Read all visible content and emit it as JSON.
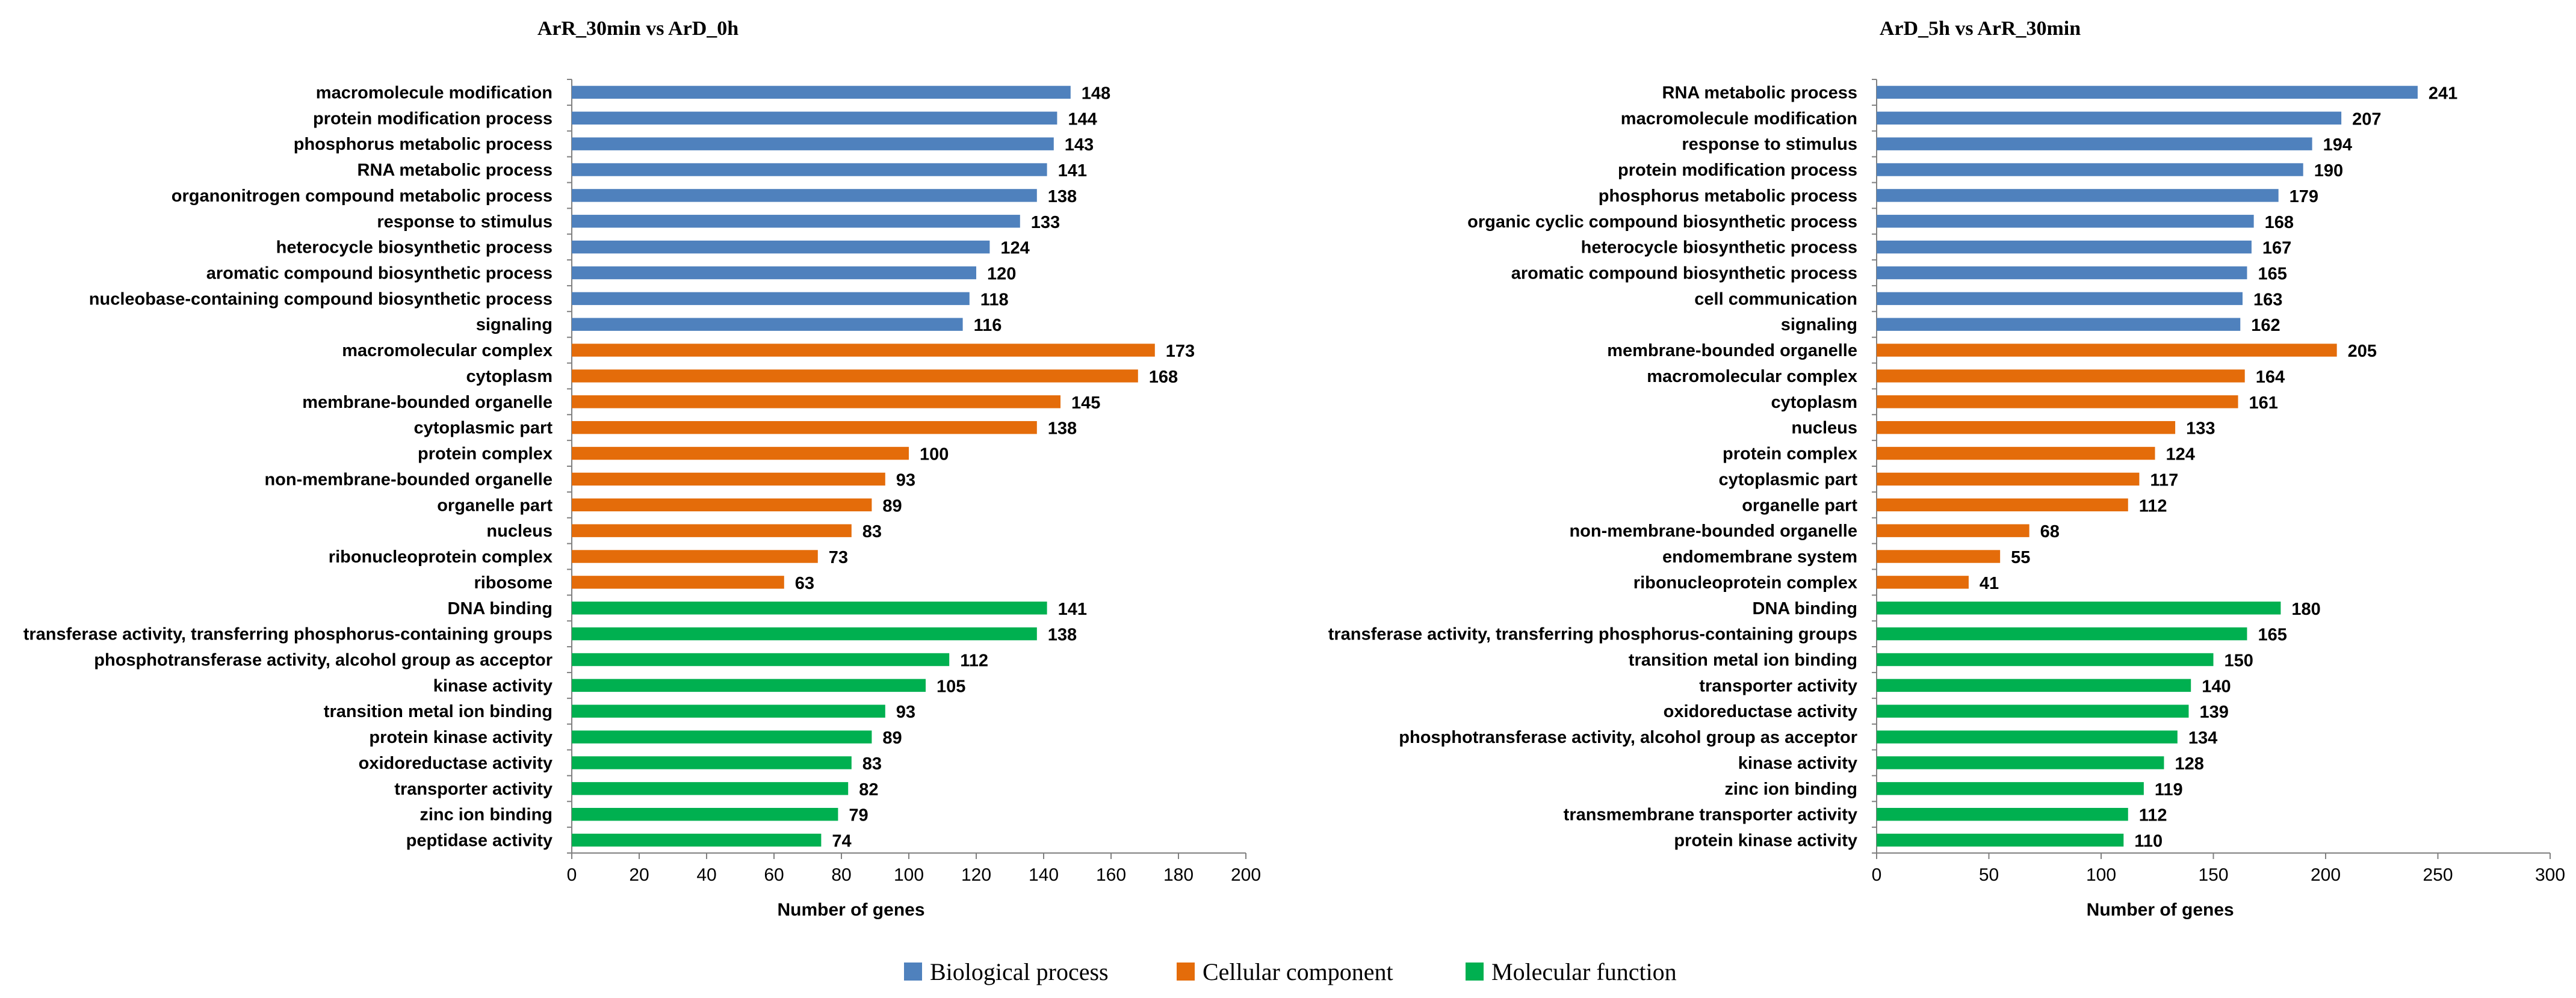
{
  "colors": {
    "biological_process": "#4F81BD",
    "cellular_component": "#E46C0A",
    "molecular_function": "#00B050"
  },
  "legend": [
    {
      "label": "Biological process",
      "key": "biological_process"
    },
    {
      "label": "Cellular component",
      "key": "cellular_component"
    },
    {
      "label": "Molecular function",
      "key": "molecular_function"
    }
  ],
  "chart_data": [
    {
      "type": "bar",
      "orientation": "horizontal",
      "title": "ArR_30min vs ArD_0h",
      "xlabel": "Number of genes",
      "ylabel": "",
      "xlim": [
        0,
        200
      ],
      "xticks": [
        0,
        20,
        40,
        60,
        80,
        100,
        120,
        140,
        160,
        180,
        200
      ],
      "categories": [
        "macromolecule modification",
        "protein modification process",
        "phosphorus metabolic process",
        "RNA metabolic process",
        "organonitrogen compound metabolic process",
        "response to stimulus",
        "heterocycle biosynthetic process",
        "aromatic compound biosynthetic process",
        "nucleobase-containing compound biosynthetic process",
        "signaling",
        "macromolecular complex",
        "cytoplasm",
        "membrane-bounded organelle",
        "cytoplasmic part",
        "protein complex",
        "non-membrane-bounded organelle",
        "organelle part",
        "nucleus",
        "ribonucleoprotein complex",
        "ribosome",
        "DNA binding",
        "transferase activity, transferring phosphorus-containing groups",
        "phosphotransferase activity, alcohol group as acceptor",
        "kinase activity",
        "transition metal ion binding",
        "protein kinase activity",
        "oxidoreductase activity",
        "transporter activity",
        "zinc ion binding",
        "peptidase activity"
      ],
      "values": [
        148,
        144,
        143,
        141,
        138,
        133,
        124,
        120,
        118,
        116,
        173,
        168,
        145,
        138,
        100,
        93,
        89,
        83,
        73,
        63,
        141,
        138,
        112,
        105,
        93,
        89,
        83,
        82,
        79,
        74
      ],
      "groups": [
        "biological_process",
        "biological_process",
        "biological_process",
        "biological_process",
        "biological_process",
        "biological_process",
        "biological_process",
        "biological_process",
        "biological_process",
        "biological_process",
        "cellular_component",
        "cellular_component",
        "cellular_component",
        "cellular_component",
        "cellular_component",
        "cellular_component",
        "cellular_component",
        "cellular_component",
        "cellular_component",
        "cellular_component",
        "molecular_function",
        "molecular_function",
        "molecular_function",
        "molecular_function",
        "molecular_function",
        "molecular_function",
        "molecular_function",
        "molecular_function",
        "molecular_function",
        "molecular_function"
      ]
    },
    {
      "type": "bar",
      "orientation": "horizontal",
      "title": "ArD_5h vs ArR_30min",
      "xlabel": "Number of genes",
      "ylabel": "",
      "xlim": [
        0,
        300
      ],
      "xticks": [
        0,
        50,
        100,
        150,
        200,
        250,
        300
      ],
      "categories": [
        "RNA metabolic process",
        "macromolecule modification",
        "response to stimulus",
        "protein modification process",
        "phosphorus metabolic process",
        "organic cyclic compound biosynthetic process",
        "heterocycle biosynthetic process",
        "aromatic compound biosynthetic process",
        "cell communication",
        "signaling",
        "membrane-bounded organelle",
        "macromolecular complex",
        "cytoplasm",
        "nucleus",
        "protein complex",
        "cytoplasmic part",
        "organelle part",
        "non-membrane-bounded organelle",
        "endomembrane system",
        "ribonucleoprotein complex",
        "DNA binding",
        "transferase activity, transferring phosphorus-containing groups",
        "transition metal ion binding",
        "transporter activity",
        "oxidoreductase activity",
        "phosphotransferase activity, alcohol group as acceptor",
        "kinase activity",
        "zinc ion binding",
        "transmembrane transporter activity",
        "protein kinase activity"
      ],
      "values": [
        241,
        207,
        194,
        190,
        179,
        168,
        167,
        165,
        163,
        162,
        205,
        164,
        161,
        133,
        124,
        117,
        112,
        68,
        55,
        41,
        180,
        165,
        150,
        140,
        139,
        134,
        128,
        119,
        112,
        110
      ],
      "groups": [
        "biological_process",
        "biological_process",
        "biological_process",
        "biological_process",
        "biological_process",
        "biological_process",
        "biological_process",
        "biological_process",
        "biological_process",
        "biological_process",
        "cellular_component",
        "cellular_component",
        "cellular_component",
        "cellular_component",
        "cellular_component",
        "cellular_component",
        "cellular_component",
        "cellular_component",
        "cellular_component",
        "cellular_component",
        "molecular_function",
        "molecular_function",
        "molecular_function",
        "molecular_function",
        "molecular_function",
        "molecular_function",
        "molecular_function",
        "molecular_function",
        "molecular_function",
        "molecular_function"
      ]
    }
  ]
}
